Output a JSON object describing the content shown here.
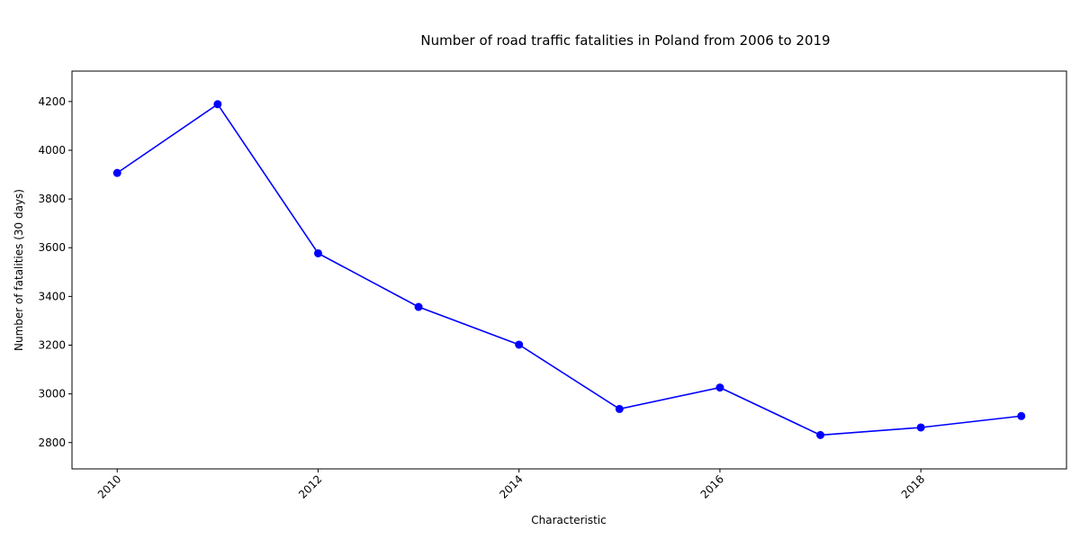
{
  "chart_data": {
    "type": "line",
    "title": "Number of road traffic fatalities in Poland from 2006 to 2019",
    "xlabel": "Characteristic",
    "ylabel": "Number of fatalities (30 days)",
    "x": [
      2010,
      2011,
      2012,
      2013,
      2014,
      2015,
      2016,
      2017,
      2018,
      2019
    ],
    "series": [
      {
        "values": [
          3907,
          4189,
          3577,
          3357,
          3202,
          2938,
          3026,
          2831,
          2862,
          2909
        ],
        "color": "#0000ff"
      }
    ],
    "xlim": [
      2009.55,
      2019.45
    ],
    "ylim": [
      2692,
      4325
    ],
    "x_ticks": [
      "2010",
      "2012",
      "2014",
      "2016",
      "2018"
    ],
    "y_ticks": [
      "2800",
      "3000",
      "3200",
      "3400",
      "3600",
      "3800",
      "4000",
      "4200"
    ],
    "grid": false,
    "legend": "none"
  }
}
